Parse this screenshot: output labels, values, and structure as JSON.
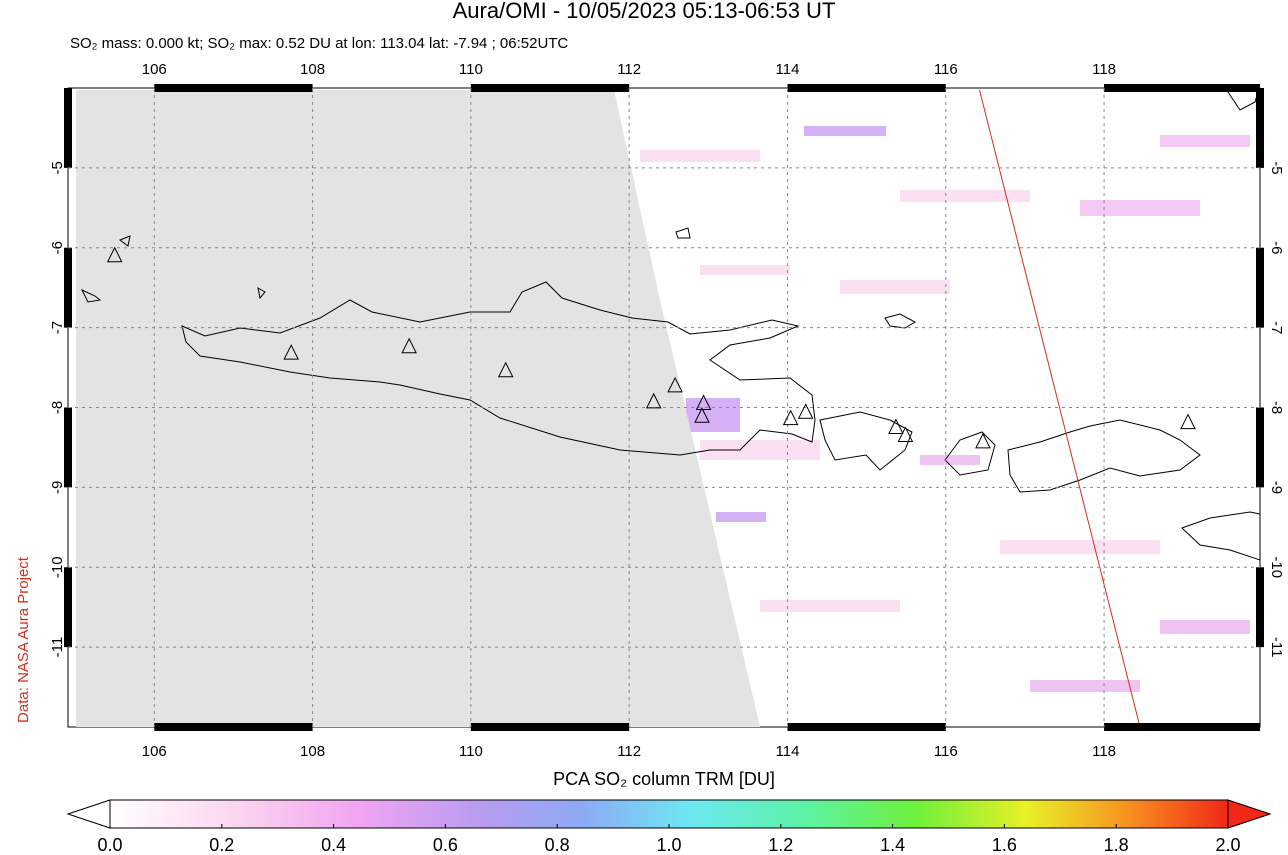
{
  "header": {
    "title": "Aura/OMI - 10/05/2023 05:13-06:53 UT",
    "subtitle": "SO₂ mass: 0.000 kt; SO₂ max: 0.52 DU at lon: 113.04 lat: -7.94 ; 06:52UTC"
  },
  "credit": "Data: NASA Aura Project",
  "map": {
    "xlim": [
      104.91,
      119.97
    ],
    "ylim": [
      -12,
      -4
    ],
    "xticks": [
      106,
      108,
      110,
      112,
      114,
      116,
      118
    ],
    "yticks": [
      -5,
      -6,
      -7,
      -8,
      -9,
      -10,
      -11
    ],
    "volcanoes": [
      {
        "lon": 105.5,
        "lat": -6.1
      },
      {
        "lon": 107.73,
        "lat": -7.32
      },
      {
        "lon": 109.22,
        "lat": -7.24
      },
      {
        "lon": 110.44,
        "lat": -7.54
      },
      {
        "lon": 112.31,
        "lat": -7.93
      },
      {
        "lon": 112.58,
        "lat": -7.73
      },
      {
        "lon": 112.94,
        "lat": -7.95
      },
      {
        "lon": 112.92,
        "lat": -8.11
      },
      {
        "lon": 114.04,
        "lat": -8.14
      },
      {
        "lon": 114.23,
        "lat": -8.06
      },
      {
        "lon": 115.37,
        "lat": -8.25
      },
      {
        "lon": 115.49,
        "lat": -8.35
      },
      {
        "lon": 116.47,
        "lat": -8.43
      },
      {
        "lon": 119.06,
        "lat": -8.19
      }
    ]
  },
  "colorbar": {
    "label": "PCA SO₂ column TRM [DU]",
    "lim": [
      0,
      2
    ],
    "ticks": [
      {
        "value": 0,
        "label": "0.0"
      },
      0.2,
      0.4,
      0.6,
      0.8,
      {
        "value": 1,
        "label": "1.0"
      },
      1.2,
      1.4,
      1.6,
      1.8,
      {
        "value": 2,
        "label": "2.0"
      }
    ]
  }
}
